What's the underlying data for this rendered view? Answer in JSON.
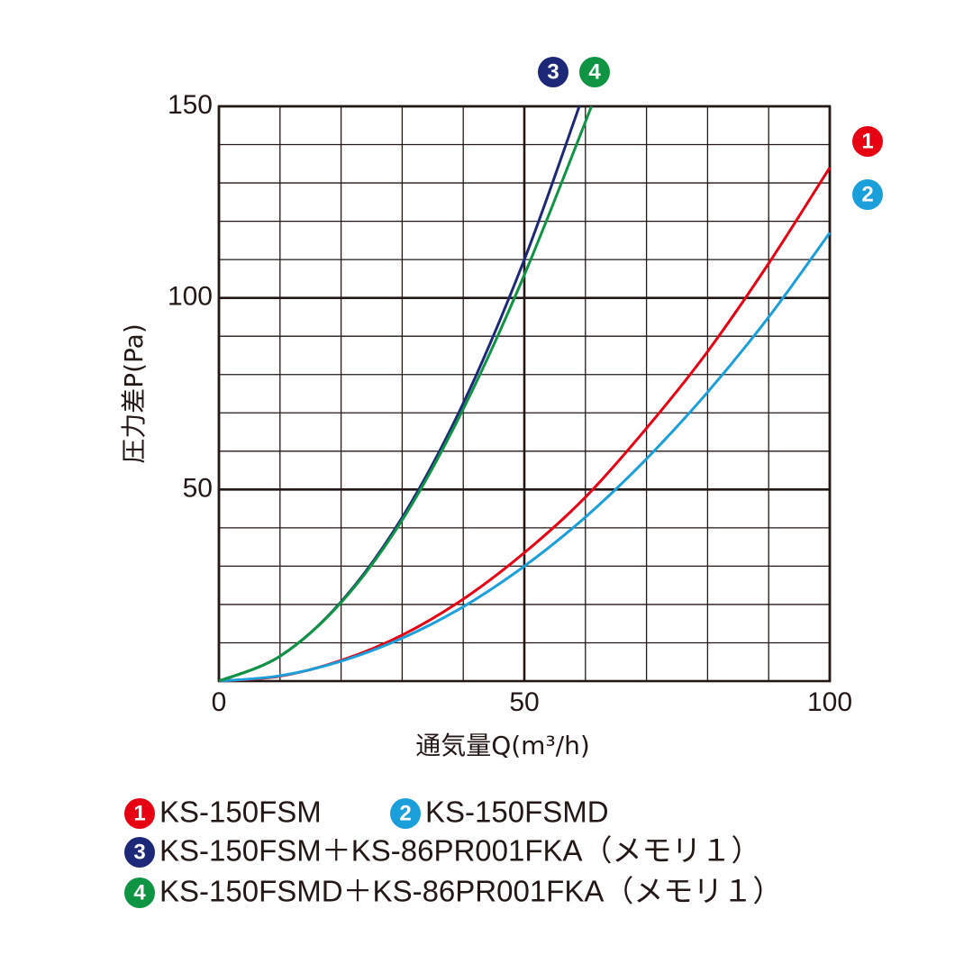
{
  "chart_data": {
    "type": "line",
    "x_label": "通気量Q(m³/h)",
    "y_label": "圧力差P(Pa)",
    "xlim": [
      0,
      100
    ],
    "ylim": [
      0,
      150
    ],
    "xticks": [
      0,
      50,
      100
    ],
    "yticks": [
      50,
      100,
      150
    ],
    "xgrid": [
      10,
      20,
      30,
      40,
      50,
      60,
      70,
      80,
      90
    ],
    "ygrid": [
      10,
      20,
      30,
      40,
      50,
      60,
      70,
      80,
      90,
      100,
      110,
      120,
      130,
      140
    ],
    "series": [
      {
        "name": "KS-150FSM",
        "label": "1",
        "color": "#e60012",
        "x": [
          0,
          10,
          20,
          30,
          40,
          50,
          60,
          70,
          80,
          90,
          100
        ],
        "values": [
          0,
          1.3,
          5.4,
          12,
          21.4,
          33.5,
          48,
          66,
          86,
          109,
          134
        ]
      },
      {
        "name": "KS-150FSMD",
        "label": "2",
        "color": "#1a9fdb",
        "x": [
          0,
          10,
          20,
          30,
          40,
          50,
          60,
          70,
          80,
          90,
          100
        ],
        "values": [
          0,
          1.4,
          5.2,
          11.2,
          19.4,
          30,
          42.8,
          58,
          75.4,
          95,
          117
        ]
      },
      {
        "name": "KS-150FSM＋KS-86PR001FKA（メモリ１）",
        "label": "3",
        "color": "#1d2878",
        "x": [
          0,
          10,
          20,
          30,
          40,
          50,
          59
        ],
        "values": [
          0,
          6.5,
          20.7,
          42.7,
          72.5,
          110,
          150
        ]
      },
      {
        "name": "KS-150FSMD＋KS-86PR001FKA（メモリ１）",
        "label": "4",
        "color": "#0f9444",
        "x": [
          0,
          10,
          20,
          30,
          40,
          50,
          61
        ],
        "values": [
          0,
          6.5,
          20.5,
          42,
          71,
          106,
          150
        ]
      }
    ]
  }
}
